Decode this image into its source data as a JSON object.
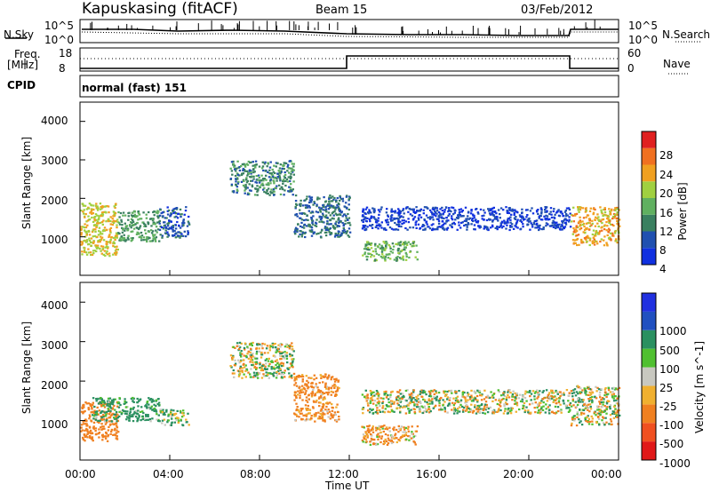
{
  "header": {
    "station": "Kapuskasing (fitACF)",
    "beam": "Beam 15",
    "date": "03/Feb/2012"
  },
  "top_panels": {
    "nsky_label": "N.Sky",
    "nsky_ticks": [
      "10^5",
      "10^0"
    ],
    "nsearch_label": "N.Search",
    "nsearch_ticks": [
      "10^5",
      "10^0"
    ],
    "freq_label_1": "Freq.",
    "freq_label_2": "[MHz]",
    "freq_ticks": [
      "18",
      "8"
    ],
    "nave_label": "Nave",
    "nave_ticks": [
      "60",
      "0"
    ],
    "cpid_label": "CPID",
    "cpid_value": "normal (fast) 151"
  },
  "x_axis": {
    "label": "Time UT",
    "ticks": [
      "00:00",
      "04:00",
      "08:00",
      "12:00",
      "16:00",
      "20:00",
      "00:00"
    ]
  },
  "y_axis_ticks": [
    "1000",
    "2000",
    "3000",
    "4000"
  ],
  "colors": {
    "power": [
      "#1030e0",
      "#2050b0",
      "#3a8060",
      "#60b060",
      "#a0d040",
      "#f0a020",
      "#f07020",
      "#e02020"
    ],
    "velocity": [
      "#e01818",
      "#f05020",
      "#f08020",
      "#f0b030",
      "#c8c8c0",
      "#50c030",
      "#2a9060",
      "#2050c0",
      "#2030e0"
    ]
  },
  "chart_data": [
    {
      "type": "heatmap",
      "title": "",
      "ylabel": "Slant Range [km]",
      "xlabel": "",
      "x_range": [
        "00:00",
        "24:00"
      ],
      "ylim": [
        0,
        4500
      ],
      "colorbar": {
        "label": "Power [dB]",
        "ticks": [
          "4",
          "8",
          "12",
          "16",
          "20",
          "24",
          "28"
        ]
      },
      "regions": [
        {
          "t_start": "00:00",
          "t_end": "01:40",
          "range_low": 500,
          "range_high": 1900,
          "value_db": 20
        },
        {
          "t_start": "01:40",
          "t_end": "03:30",
          "range_low": 900,
          "range_high": 1700,
          "value_db": 12
        },
        {
          "t_start": "03:30",
          "t_end": "04:50",
          "range_low": 1000,
          "range_high": 1800,
          "value_db": 6
        },
        {
          "t_start": "06:40",
          "t_end": "09:30",
          "range_low": 2100,
          "range_high": 3000,
          "value_db": 10
        },
        {
          "t_start": "09:30",
          "t_end": "12:00",
          "range_low": 1000,
          "range_high": 2100,
          "value_db": 8
        },
        {
          "t_start": "12:30",
          "t_end": "15:00",
          "range_low": 400,
          "range_high": 900,
          "value_db": 14
        },
        {
          "t_start": "12:30",
          "t_end": "21:50",
          "range_low": 1200,
          "range_high": 1800,
          "value_db": 4
        },
        {
          "t_start": "21:50",
          "t_end": "24:00",
          "range_low": 800,
          "range_high": 1800,
          "value_db": 22
        }
      ]
    },
    {
      "type": "heatmap",
      "title": "",
      "ylabel": "Slant Range [km]",
      "xlabel": "Time UT",
      "x_range": [
        "00:00",
        "24:00"
      ],
      "ylim": [
        0,
        4500
      ],
      "colorbar": {
        "label": "Velocity [m s^-1]",
        "ticks": [
          "-1000",
          "-500",
          "-100",
          "-25",
          "25",
          "100",
          "500",
          "1000"
        ]
      },
      "regions": [
        {
          "t_start": "00:00",
          "t_end": "01:40",
          "range_low": 500,
          "range_high": 1500,
          "value_ms": -300
        },
        {
          "t_start": "00:30",
          "t_end": "03:30",
          "range_low": 1000,
          "range_high": 1600,
          "value_ms": 200
        },
        {
          "t_start": "03:30",
          "t_end": "04:50",
          "range_low": 900,
          "range_high": 1300,
          "value_ms": 80
        },
        {
          "t_start": "06:40",
          "t_end": "09:30",
          "range_low": 2100,
          "range_high": 3000,
          "value_ms": 0
        },
        {
          "t_start": "09:30",
          "t_end": "11:30",
          "range_low": 1000,
          "range_high": 2200,
          "value_ms": -200
        },
        {
          "t_start": "12:30",
          "t_end": "15:00",
          "range_low": 400,
          "range_high": 900,
          "value_ms": -150
        },
        {
          "t_start": "12:30",
          "t_end": "21:50",
          "range_low": 1200,
          "range_high": 1800,
          "value_ms": 0
        },
        {
          "t_start": "21:50",
          "t_end": "24:00",
          "range_low": 900,
          "range_high": 1900,
          "value_ms": 0
        }
      ]
    }
  ]
}
